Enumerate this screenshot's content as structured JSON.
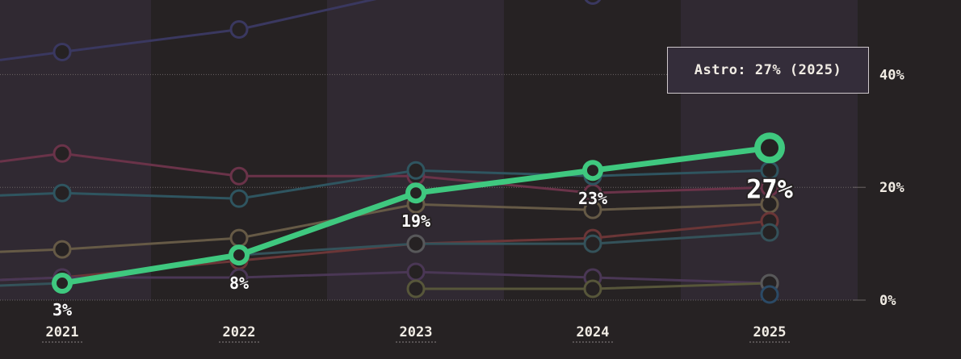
{
  "chart_data": {
    "type": "line",
    "categories": [
      "2021",
      "2022",
      "2023",
      "2024",
      "2025"
    ],
    "ylim": [
      0,
      50
    ],
    "yticks": [
      0,
      20,
      40
    ],
    "ytick_labels": [
      "0%",
      "20%",
      "40%"
    ],
    "grid": true,
    "highlight": {
      "name": "Astro",
      "color": "#3fc87f",
      "values": [
        3,
        8,
        19,
        23,
        27
      ],
      "labels": [
        "3%",
        "8%",
        "19%",
        "23%",
        "27%"
      ]
    },
    "series": [
      {
        "color": "#3a3860",
        "values": [
          44,
          48,
          55,
          54,
          null
        ]
      },
      {
        "color": "#6a3349",
        "values": [
          26,
          22,
          22,
          19,
          20
        ]
      },
      {
        "color": "#2f5560",
        "values": [
          19,
          18,
          23,
          22,
          23
        ]
      },
      {
        "color": "#665a46",
        "values": [
          9,
          11,
          17,
          16,
          17
        ]
      },
      {
        "color": "#6b3637",
        "values": [
          4,
          7,
          10,
          11,
          14
        ]
      },
      {
        "color": "#34525a",
        "values": [
          3,
          8,
          10,
          10,
          12
        ]
      },
      {
        "color": "#4a3755",
        "values": [
          4,
          4,
          5,
          4,
          3
        ]
      },
      {
        "color": "#57563a",
        "values": [
          null,
          null,
          2,
          2,
          3
        ]
      },
      {
        "color": "#58585a",
        "values": [
          null,
          null,
          10,
          null,
          3
        ]
      },
      {
        "color": "#2b4a66",
        "values": [
          null,
          null,
          null,
          null,
          1
        ]
      }
    ]
  },
  "tooltip": {
    "text": "Astro: 27% (2025)"
  }
}
